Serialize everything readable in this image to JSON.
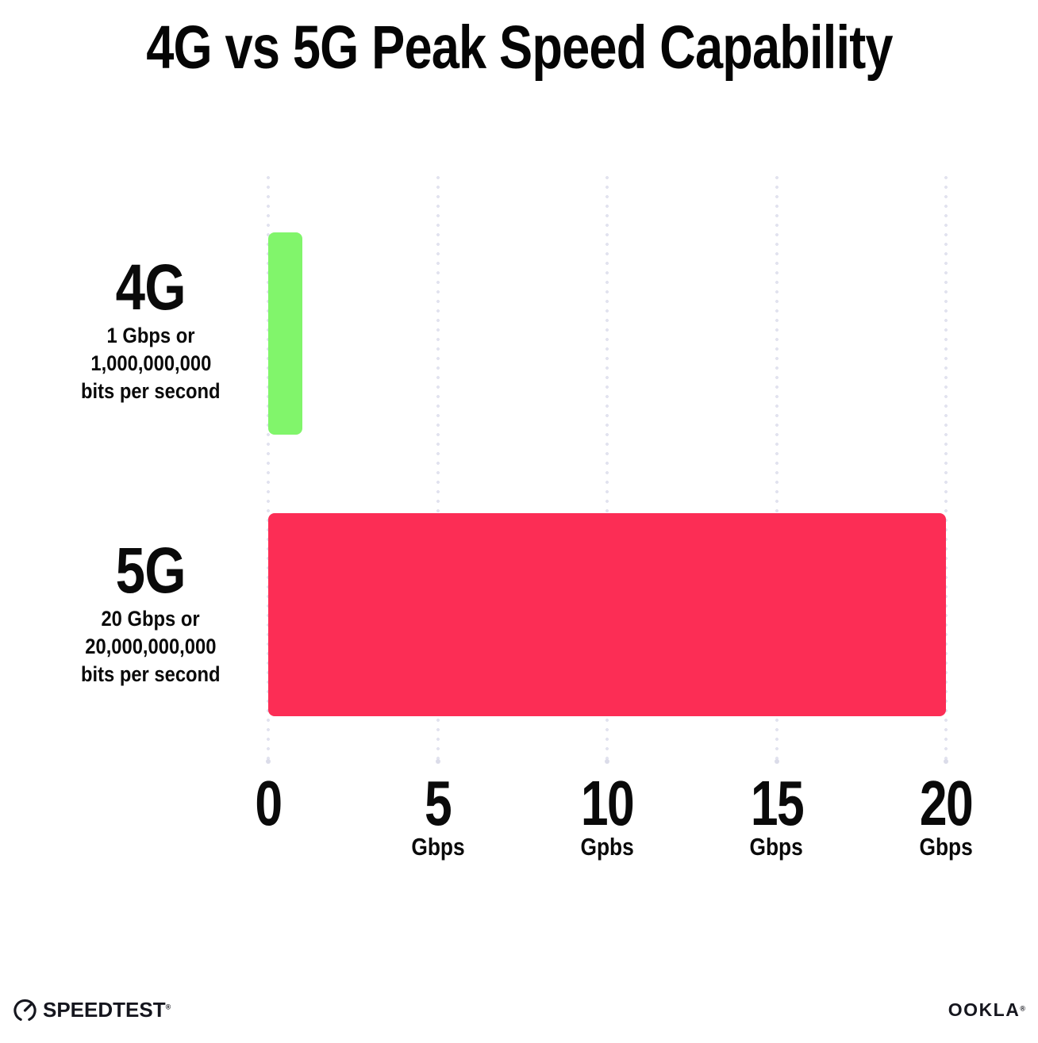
{
  "title": "4G vs 5G Peak Speed Capability",
  "chart_data": {
    "type": "bar",
    "orientation": "horizontal",
    "title": "4G vs 5G Peak Speed Capability",
    "categories": [
      "4G",
      "5G"
    ],
    "values": [
      1,
      20
    ],
    "value_unit": "Gbps",
    "bar_colors": [
      "#81F56B",
      "#FC2D55"
    ],
    "xlim": [
      0,
      20
    ],
    "xticks": [
      0,
      5,
      10,
      15,
      20
    ],
    "xtick_labels": [
      "0",
      "5 Gbps",
      "10 Gpbs",
      "15 Gbps",
      "20 Gbps"
    ],
    "grid": "dotted-vertical-gridlines",
    "legend": "none",
    "annotations": [
      "4G: 1 Gbps or 1,000,000,000 bits per second",
      "5G: 20 Gbps or 20,000,000,000 bits per second"
    ]
  },
  "rows": [
    {
      "label": "4G",
      "desc_lines": [
        "1 Gbps or",
        "1,000,000,000",
        "bits per second"
      ]
    },
    {
      "label": "5G",
      "desc_lines": [
        "20 Gbps or",
        "20,000,000,000",
        "bits per second"
      ]
    }
  ],
  "x_axis": {
    "ticks": [
      {
        "number": "0",
        "unit": ""
      },
      {
        "number": "5",
        "unit": "Gbps"
      },
      {
        "number": "10",
        "unit": "Gpbs"
      },
      {
        "number": "15",
        "unit": "Gbps"
      },
      {
        "number": "20",
        "unit": "Gbps"
      }
    ]
  },
  "footer": {
    "speedtest_label": "SPEEDTEST",
    "speedtest_mark": "®",
    "ookla_label": "OOKLA",
    "ookla_mark": "®"
  },
  "colors": {
    "green": "#81F56B",
    "pink": "#FC2D55",
    "grid_dot": "#E2E3EF",
    "text": "#0A0A0A",
    "logo": "#15161E"
  }
}
